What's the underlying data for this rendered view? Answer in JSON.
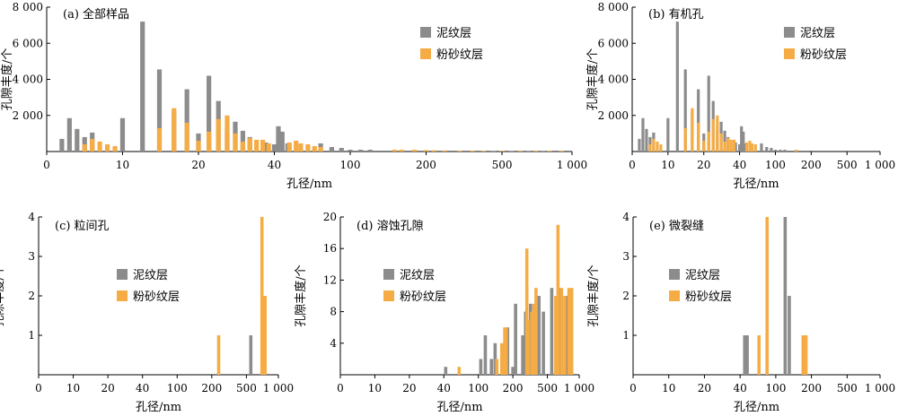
{
  "colors": {
    "mud": "#8c8c8c",
    "silt": "#f5ac45"
  },
  "chart_data": [
    {
      "type": "bar",
      "title": "(a) 全部样品",
      "xlabel": "孔径/nm",
      "ylabel": "孔隙丰度/个",
      "xscale": "piecewise-log",
      "xticks": [
        "0",
        "10",
        "20",
        "40",
        "100",
        "200",
        "500",
        "1 000"
      ],
      "ylim": [
        0,
        8000
      ],
      "yticks": [
        "2 000",
        "4 000",
        "6 000",
        "8 000"
      ],
      "legend_position": "top-center",
      "series": [
        {
          "name": "泥纹层",
          "color_key": "mud",
          "points": [
            [
              2,
              700
            ],
            [
              3,
              1850
            ],
            [
              4,
              1250
            ],
            [
              5,
              800
            ],
            [
              6,
              1050
            ],
            [
              10,
              1850
            ],
            [
              12,
              7200
            ],
            [
              14,
              4550
            ],
            [
              16,
              2250
            ],
            [
              18,
              3450
            ],
            [
              20,
              1000
            ],
            [
              22,
              4200
            ],
            [
              24,
              2800
            ],
            [
              26,
              1250
            ],
            [
              28,
              1650
            ],
            [
              30,
              1150
            ],
            [
              32,
              800
            ],
            [
              37,
              500
            ],
            [
              40,
              400
            ],
            [
              42,
              1400
            ],
            [
              44,
              1100
            ],
            [
              47,
              450
            ],
            [
              70,
              450
            ],
            [
              80,
              250
            ],
            [
              90,
              200
            ],
            [
              100,
              100
            ],
            [
              110,
              100
            ],
            [
              120,
              100
            ],
            [
              200,
              60
            ],
            [
              220,
              50
            ],
            [
              250,
              50
            ],
            [
              300,
              40
            ],
            [
              400,
              30
            ],
            [
              450,
              30
            ],
            [
              500,
              30
            ],
            [
              550,
              25
            ],
            [
              600,
              20
            ],
            [
              650,
              20
            ],
            [
              700,
              20
            ],
            [
              750,
              20
            ],
            [
              800,
              15
            ],
            [
              900,
              15
            ]
          ]
        },
        {
          "name": "粉砂纹层",
          "color_key": "silt",
          "points": [
            [
              5,
              400
            ],
            [
              6,
              700
            ],
            [
              7,
              550
            ],
            [
              8,
              400
            ],
            [
              9,
              300
            ],
            [
              14,
              1300
            ],
            [
              16,
              2400
            ],
            [
              18,
              1600
            ],
            [
              20,
              600
            ],
            [
              22,
              1100
            ],
            [
              24,
              1800
            ],
            [
              26,
              2000
            ],
            [
              28,
              1000
            ],
            [
              30,
              550
            ],
            [
              32,
              750
            ],
            [
              34,
              650
            ],
            [
              36,
              650
            ],
            [
              38,
              450
            ],
            [
              48,
              500
            ],
            [
              52,
              600
            ],
            [
              55,
              450
            ],
            [
              60,
              400
            ],
            [
              65,
              300
            ],
            [
              70,
              250
            ],
            [
              150,
              100
            ],
            [
              160,
              100
            ],
            [
              180,
              100
            ],
            [
              200,
              80
            ],
            [
              220,
              70
            ],
            [
              250,
              60
            ],
            [
              300,
              50
            ],
            [
              350,
              50
            ],
            [
              400,
              40
            ],
            [
              500,
              40
            ],
            [
              600,
              30
            ],
            [
              700,
              30
            ],
            [
              800,
              20
            ],
            [
              900,
              20
            ]
          ]
        }
      ]
    },
    {
      "type": "bar",
      "title": "(b) 有机孔",
      "xlabel": "孔径/nm",
      "ylabel": "孔隙丰度/个",
      "xscale": "piecewise-log",
      "xticks": [
        "0",
        "10",
        "20",
        "40",
        "100",
        "200",
        "500",
        "1 000"
      ],
      "ylim": [
        0,
        8000
      ],
      "yticks": [
        "2 000",
        "4 000",
        "6 000",
        "8 000"
      ],
      "legend_position": "top-right",
      "series": [
        {
          "name": "泥纹层",
          "color_key": "mud",
          "points": [
            [
              2,
              700
            ],
            [
              3,
              1850
            ],
            [
              4,
              1250
            ],
            [
              5,
              800
            ],
            [
              6,
              1050
            ],
            [
              10,
              1850
            ],
            [
              12,
              7200
            ],
            [
              14,
              4550
            ],
            [
              16,
              2250
            ],
            [
              18,
              3450
            ],
            [
              20,
              1000
            ],
            [
              22,
              4200
            ],
            [
              24,
              2800
            ],
            [
              26,
              1250
            ],
            [
              28,
              1650
            ],
            [
              30,
              1150
            ],
            [
              32,
              800
            ],
            [
              37,
              500
            ],
            [
              40,
              400
            ],
            [
              42,
              1400
            ],
            [
              44,
              1100
            ],
            [
              47,
              450
            ],
            [
              70,
              450
            ],
            [
              80,
              250
            ],
            [
              90,
              200
            ],
            [
              100,
              100
            ],
            [
              110,
              100
            ],
            [
              120,
              100
            ]
          ]
        },
        {
          "name": "粉砂纹层",
          "color_key": "silt",
          "points": [
            [
              5,
              400
            ],
            [
              6,
              700
            ],
            [
              7,
              550
            ],
            [
              8,
              400
            ],
            [
              14,
              1300
            ],
            [
              16,
              2400
            ],
            [
              18,
              1600
            ],
            [
              20,
              600
            ],
            [
              22,
              1100
            ],
            [
              24,
              1800
            ],
            [
              26,
              2000
            ],
            [
              28,
              1000
            ],
            [
              30,
              550
            ],
            [
              32,
              750
            ],
            [
              34,
              650
            ],
            [
              36,
              650
            ],
            [
              48,
              500
            ],
            [
              52,
              600
            ],
            [
              55,
              450
            ],
            [
              60,
              400
            ],
            [
              150,
              100
            ]
          ]
        }
      ]
    },
    {
      "type": "bar",
      "title": "(c) 粒间孔",
      "xlabel": "孔径/nm",
      "ylabel": "孔隙丰度/个",
      "xscale": "piecewise-log",
      "xticks": [
        "0",
        "10",
        "20",
        "40",
        "100",
        "200",
        "500",
        "1 000"
      ],
      "ylim": [
        0,
        4
      ],
      "yticks": [
        "1",
        "2",
        "3",
        "4"
      ],
      "legend_position": "center",
      "series": [
        {
          "name": "泥纹层",
          "color_key": "mud",
          "points": [
            [
              550,
              1
            ]
          ]
        },
        {
          "name": "粉砂纹层",
          "color_key": "silt",
          "points": [
            [
              240,
              1
            ],
            [
              700,
              4
            ],
            [
              750,
              2
            ]
          ]
        }
      ]
    },
    {
      "type": "bar",
      "title": "(d) 溶蚀孔隙",
      "xlabel": "孔径/nm",
      "ylabel": "孔隙丰度/个",
      "xscale": "piecewise-log",
      "xticks": [
        "0",
        "10",
        "20",
        "40",
        "100",
        "200",
        "500",
        "1 000"
      ],
      "ylim": [
        0,
        20
      ],
      "yticks": [
        "4",
        "8",
        "12",
        "16",
        "20"
      ],
      "legend_position": "top-left",
      "series": [
        {
          "name": "泥纹层",
          "color_key": "mud",
          "points": [
            [
              42,
              1
            ],
            [
              105,
              2
            ],
            [
              115,
              5
            ],
            [
              130,
              2
            ],
            [
              140,
              4
            ],
            [
              180,
              6
            ],
            [
              200,
              1
            ],
            [
              215,
              9
            ],
            [
              260,
              5
            ],
            [
              280,
              8
            ],
            [
              320,
              9
            ],
            [
              400,
              10
            ],
            [
              450,
              8
            ],
            [
              550,
              11
            ],
            [
              650,
              11
            ],
            [
              750,
              10
            ]
          ]
        },
        {
          "name": "粉砂纹层",
          "color_key": "silt",
          "points": [
            [
              60,
              1
            ],
            [
              145,
              2
            ],
            [
              160,
              4
            ],
            [
              170,
              6
            ],
            [
              175,
              6
            ],
            [
              290,
              16
            ],
            [
              300,
              7
            ],
            [
              330,
              8
            ],
            [
              350,
              9
            ],
            [
              370,
              11
            ],
            [
              600,
              10
            ],
            [
              630,
              19
            ],
            [
              680,
              11
            ],
            [
              730,
              10
            ],
            [
              800,
              11
            ],
            [
              850,
              11
            ]
          ]
        }
      ]
    },
    {
      "type": "bar",
      "title": "(e) 微裂缝",
      "xlabel": "孔径/nm",
      "ylabel": "孔隙丰度/个",
      "xscale": "piecewise-log",
      "xticks": [
        "0",
        "10",
        "20",
        "40",
        "100",
        "200",
        "500",
        "1 000"
      ],
      "ylim": [
        0,
        4
      ],
      "yticks": [
        "1",
        "2",
        "3",
        "4"
      ],
      "legend_position": "center",
      "series": [
        {
          "name": "泥纹层",
          "color_key": "mud",
          "points": [
            [
              45,
              1
            ],
            [
              48,
              1
            ],
            [
              120,
              4
            ],
            [
              130,
              2
            ]
          ]
        },
        {
          "name": "粉砂纹层",
          "color_key": "silt",
          "points": [
            [
              65,
              1
            ],
            [
              80,
              4
            ],
            [
              170,
              1
            ],
            [
              180,
              1
            ]
          ]
        }
      ]
    }
  ]
}
